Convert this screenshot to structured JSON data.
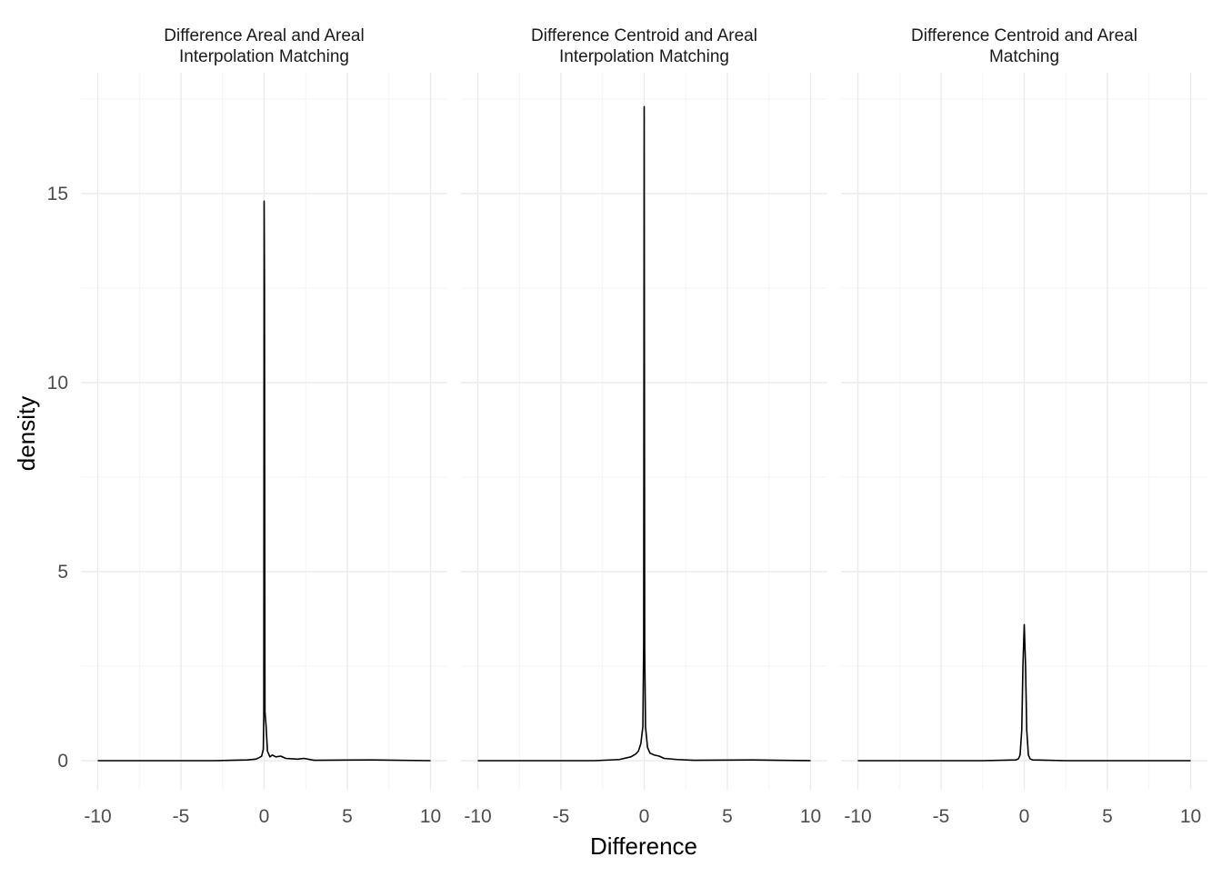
{
  "chart_data": {
    "type": "line",
    "kind": "faceted density plot",
    "xlabel": "Difference",
    "ylabel": "density",
    "xlim": [
      -10,
      10
    ],
    "ylim": [
      0,
      17.3
    ],
    "x_ticks": [
      -10,
      -5,
      0,
      5,
      10
    ],
    "x_tick_labels": [
      "-10",
      "-5",
      "0",
      "5",
      "10"
    ],
    "y_ticks": [
      0,
      5,
      10,
      15
    ],
    "y_tick_labels": [
      "0",
      "5",
      "10",
      "15"
    ],
    "grid": true,
    "legend": "none",
    "facets": [
      {
        "title_lines": [
          "Difference Areal and Areal",
          "Interpolation Matching"
        ],
        "points": [
          [
            -10,
            0
          ],
          [
            -3,
            0
          ],
          [
            -1,
            0.02
          ],
          [
            -0.5,
            0.04
          ],
          [
            -0.3,
            0.08
          ],
          [
            -0.15,
            0.12
          ],
          [
            -0.05,
            0.3
          ],
          [
            -0.02,
            1.2
          ],
          [
            0,
            14.8
          ],
          [
            0.02,
            12.8
          ],
          [
            0.05,
            1.3
          ],
          [
            0.12,
            0.9
          ],
          [
            0.2,
            0.25
          ],
          [
            0.35,
            0.1
          ],
          [
            0.5,
            0.15
          ],
          [
            0.7,
            0.1
          ],
          [
            1.0,
            0.12
          ],
          [
            1.3,
            0.06
          ],
          [
            2.0,
            0.04
          ],
          [
            2.4,
            0.06
          ],
          [
            3.0,
            0.01
          ],
          [
            6.5,
            0.02
          ],
          [
            10,
            0
          ]
        ]
      },
      {
        "title_lines": [
          "Difference Centroid and Areal",
          "Interpolation Matching"
        ],
        "points": [
          [
            -10,
            0
          ],
          [
            -3,
            0
          ],
          [
            -1.5,
            0.03
          ],
          [
            -0.8,
            0.1
          ],
          [
            -0.5,
            0.18
          ],
          [
            -0.35,
            0.25
          ],
          [
            -0.2,
            0.45
          ],
          [
            -0.08,
            0.9
          ],
          [
            -0.03,
            3.1
          ],
          [
            0,
            17.3
          ],
          [
            0.03,
            3.0
          ],
          [
            0.08,
            0.9
          ],
          [
            0.2,
            0.35
          ],
          [
            0.35,
            0.2
          ],
          [
            0.6,
            0.15
          ],
          [
            0.9,
            0.12
          ],
          [
            1.2,
            0.06
          ],
          [
            2.0,
            0.03
          ],
          [
            3.0,
            0.01
          ],
          [
            6.5,
            0.02
          ],
          [
            8.0,
            0.01
          ],
          [
            10,
            0
          ]
        ]
      },
      {
        "title_lines": [
          "Difference Centroid and Areal",
          "Matching"
        ],
        "points": [
          [
            -10,
            0
          ],
          [
            -2.5,
            0
          ],
          [
            -0.5,
            0.02
          ],
          [
            -0.35,
            0.05
          ],
          [
            -0.25,
            0.15
          ],
          [
            -0.15,
            0.8
          ],
          [
            -0.08,
            2.5
          ],
          [
            0,
            3.6
          ],
          [
            0.08,
            2.5
          ],
          [
            0.15,
            0.8
          ],
          [
            0.25,
            0.15
          ],
          [
            0.35,
            0.05
          ],
          [
            0.5,
            0.02
          ],
          [
            2.5,
            0
          ],
          [
            10,
            0
          ]
        ]
      }
    ]
  }
}
